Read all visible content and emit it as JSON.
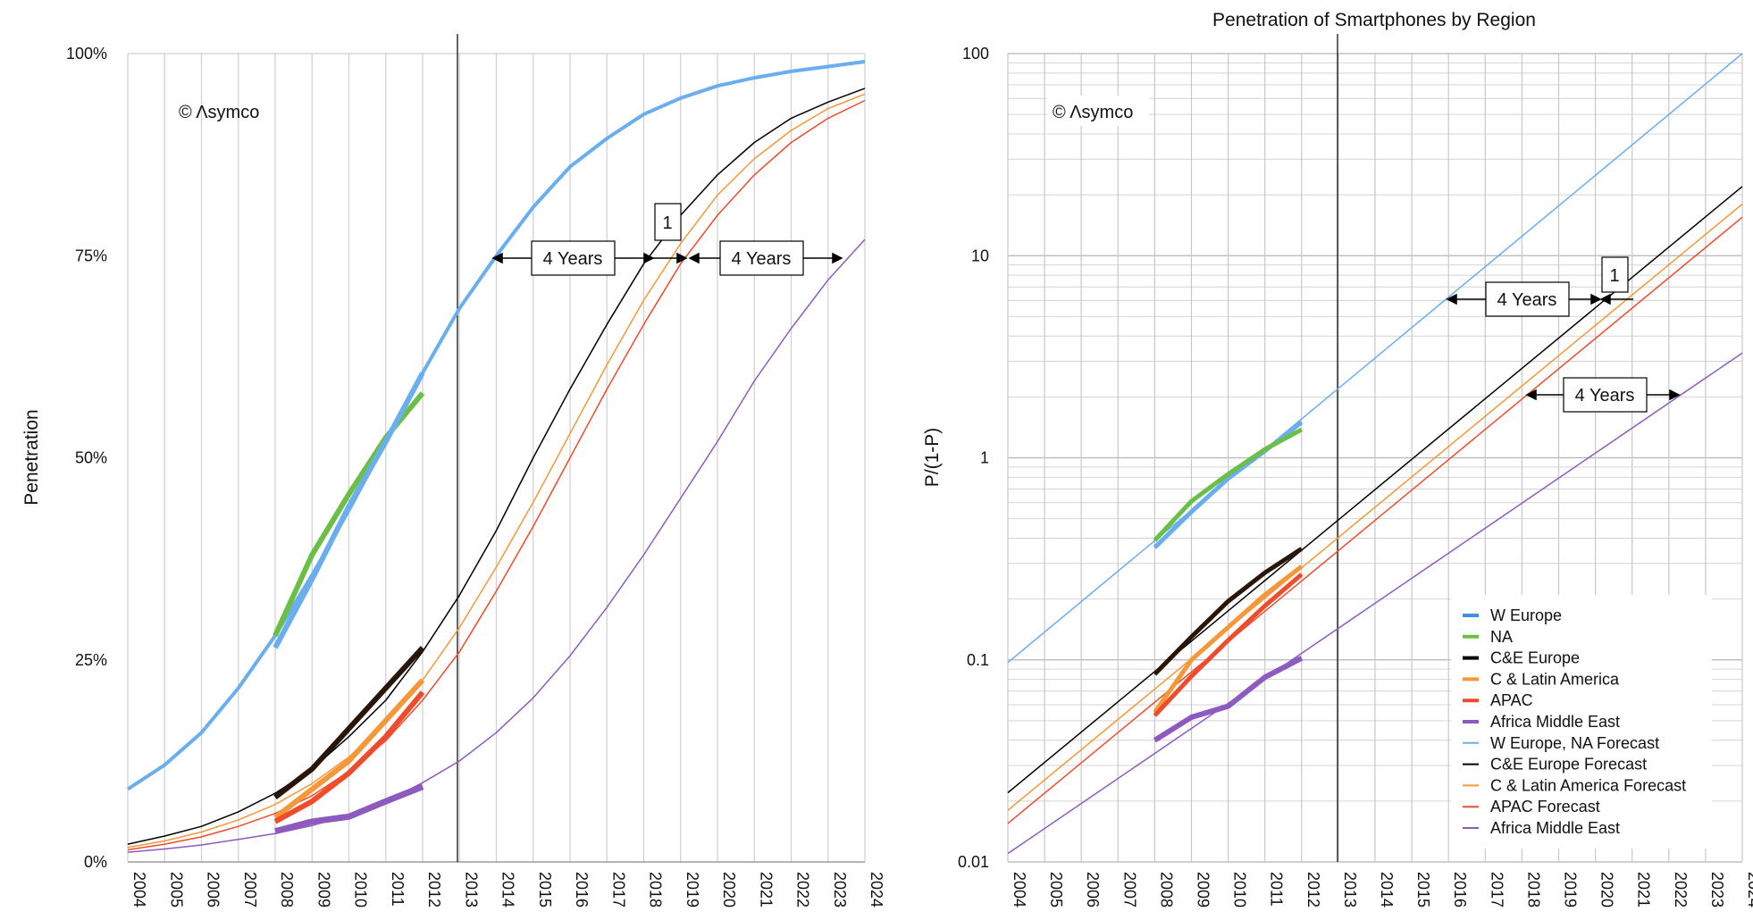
{
  "chart_data": [
    {
      "type": "line",
      "title": "",
      "watermark": "© Λsymco",
      "ylabel": "Penetration",
      "xlabel": "",
      "x_ticks": [
        "2004",
        "2005",
        "2006",
        "2007",
        "2008",
        "2009",
        "2010",
        "2011",
        "2012",
        "2013",
        "2014",
        "2015",
        "2016",
        "2017",
        "2018",
        "2019",
        "2020",
        "2021",
        "2022",
        "2023",
        "2024"
      ],
      "y_ticks": [
        "0%",
        "25%",
        "50%",
        "75%",
        "100%"
      ],
      "xlim": [
        2004,
        2024
      ],
      "ylim": [
        0,
        1
      ],
      "grid": "vertical",
      "divider_year": 2013,
      "annotations": [
        "4 Years",
        "1",
        "4 Years"
      ],
      "series": [
        {
          "key": "weu_fc",
          "color": "#6aaef0",
          "width": 4,
          "x": [
            2004,
            2005,
            2006,
            2007,
            2008,
            2009,
            2010,
            2011,
            2012,
            2013,
            2014,
            2015,
            2016,
            2017,
            2018,
            2019,
            2020,
            2021,
            2022,
            2023,
            2024
          ],
          "y": [
            0.09,
            0.12,
            0.16,
            0.215,
            0.28,
            0.355,
            0.435,
            0.52,
            0.605,
            0.685,
            0.75,
            0.81,
            0.86,
            0.895,
            0.925,
            0.945,
            0.96,
            0.97,
            0.978,
            0.984,
            0.99
          ]
        },
        {
          "key": "ceeu_fc",
          "color": "#000000",
          "width": 1.5,
          "x": [
            2004,
            2005,
            2006,
            2007,
            2008,
            2009,
            2010,
            2011,
            2012,
            2013,
            2014,
            2015,
            2016,
            2017,
            2018,
            2019,
            2020,
            2021,
            2022,
            2023,
            2024
          ],
          "y": [
            0.022,
            0.032,
            0.044,
            0.062,
            0.085,
            0.115,
            0.155,
            0.2,
            0.26,
            0.33,
            0.41,
            0.5,
            0.585,
            0.665,
            0.74,
            0.8,
            0.85,
            0.89,
            0.92,
            0.94,
            0.957
          ]
        },
        {
          "key": "cla_fc",
          "color": "#f4983a",
          "width": 1.5,
          "x": [
            2004,
            2005,
            2006,
            2007,
            2008,
            2009,
            2010,
            2011,
            2012,
            2013,
            2014,
            2015,
            2016,
            2017,
            2018,
            2019,
            2020,
            2021,
            2022,
            2023,
            2024
          ],
          "y": [
            0.018,
            0.026,
            0.037,
            0.052,
            0.071,
            0.097,
            0.13,
            0.172,
            0.225,
            0.29,
            0.365,
            0.445,
            0.53,
            0.615,
            0.695,
            0.765,
            0.825,
            0.87,
            0.905,
            0.932,
            0.95
          ]
        },
        {
          "key": "apac_fc",
          "color": "#ee4c2c",
          "width": 1.5,
          "x": [
            2004,
            2005,
            2006,
            2007,
            2008,
            2009,
            2010,
            2011,
            2012,
            2013,
            2014,
            2015,
            2016,
            2017,
            2018,
            2019,
            2020,
            2021,
            2022,
            2023,
            2024
          ],
          "y": [
            0.015,
            0.022,
            0.031,
            0.044,
            0.06,
            0.082,
            0.112,
            0.15,
            0.2,
            0.26,
            0.335,
            0.415,
            0.5,
            0.585,
            0.665,
            0.74,
            0.8,
            0.85,
            0.89,
            0.92,
            0.942
          ]
        },
        {
          "key": "ame_fc",
          "color": "#8d5bbf",
          "width": 1.5,
          "x": [
            2004,
            2005,
            2006,
            2007,
            2008,
            2009,
            2010,
            2011,
            2012,
            2013,
            2014,
            2015,
            2016,
            2017,
            2018,
            2019,
            2020,
            2021,
            2022,
            2023,
            2024
          ],
          "y": [
            0.012,
            0.016,
            0.021,
            0.028,
            0.035,
            0.045,
            0.058,
            0.075,
            0.098,
            0.125,
            0.16,
            0.203,
            0.255,
            0.315,
            0.38,
            0.45,
            0.52,
            0.595,
            0.66,
            0.72,
            0.77
          ]
        },
        {
          "key": "na",
          "color": "#6bbf45",
          "width": 6,
          "x": [
            2008,
            2009,
            2010,
            2011,
            2012
          ],
          "y": [
            0.28,
            0.38,
            0.455,
            0.525,
            0.58
          ]
        },
        {
          "key": "weu",
          "color": "#6aaef0",
          "width": 6,
          "x": [
            2008,
            2009,
            2010,
            2011,
            2012
          ],
          "y": [
            0.265,
            0.35,
            0.44,
            0.52,
            0.605
          ]
        },
        {
          "key": "ceeu",
          "color": "#2a1608",
          "width": 6,
          "x": [
            2008,
            2009,
            2010,
            2011,
            2012
          ],
          "y": [
            0.08,
            0.115,
            0.165,
            0.215,
            0.265
          ]
        },
        {
          "key": "cla",
          "color": "#f4983a",
          "width": 6,
          "x": [
            2008,
            2009,
            2010,
            2011,
            2012
          ],
          "y": [
            0.055,
            0.09,
            0.125,
            0.175,
            0.225
          ]
        },
        {
          "key": "apac",
          "color": "#ee4c2c",
          "width": 6,
          "x": [
            2008,
            2009,
            2010,
            2011,
            2012
          ],
          "y": [
            0.05,
            0.075,
            0.11,
            0.155,
            0.21
          ]
        },
        {
          "key": "ame",
          "color": "#8d5bbf",
          "width": 7,
          "x": [
            2008,
            2009,
            2010,
            2011,
            2012
          ],
          "y": [
            0.038,
            0.05,
            0.056,
            0.075,
            0.093
          ]
        }
      ]
    },
    {
      "type": "line",
      "title": "Penetration of Smartphones by Region",
      "watermark": "© Λsymco",
      "ylabel": "P/(1-P)",
      "xlabel": "",
      "scale_y": "log",
      "x_ticks": [
        "2004",
        "2005",
        "2006",
        "2007",
        "2008",
        "2009",
        "2010",
        "2011",
        "2012",
        "2013",
        "2014",
        "2015",
        "2016",
        "2017",
        "2018",
        "2019",
        "2020",
        "2021",
        "2022",
        "2023",
        "2024"
      ],
      "y_ticks": [
        "0.01",
        "0.1",
        "1",
        "10",
        "100"
      ],
      "xlim": [
        2004,
        2024
      ],
      "ylim": [
        0.01,
        100
      ],
      "grid": "both",
      "divider_year": 2013,
      "annotations": [
        "4 Years",
        "1",
        "4 Years"
      ],
      "legend_position": "bottom-right",
      "series": [
        {
          "key": "weu_fc",
          "name": "W Europe, NA Forecast",
          "color": "#6aaef0",
          "width": 1.5,
          "x": [
            2004,
            2024
          ],
          "y": [
            0.097,
            100
          ]
        },
        {
          "key": "ceeu_fc",
          "name": "C&E Europe Forecast",
          "color": "#000000",
          "width": 1.5,
          "x": [
            2004,
            2024
          ],
          "y": [
            0.022,
            22
          ]
        },
        {
          "key": "cla_fc",
          "name": "C & Latin America Forecast",
          "color": "#f4983a",
          "width": 1.5,
          "x": [
            2004,
            2024
          ],
          "y": [
            0.018,
            18
          ]
        },
        {
          "key": "apac_fc",
          "name": "APAC Forecast",
          "color": "#ee4c2c",
          "width": 1.5,
          "x": [
            2004,
            2024
          ],
          "y": [
            0.0155,
            15.5
          ]
        },
        {
          "key": "ame_fc",
          "name": "Africa Middle East",
          "color": "#8d5bbf",
          "width": 1.5,
          "x": [
            2004,
            2024
          ],
          "y": [
            0.011,
            3.3
          ]
        },
        {
          "key": "weu",
          "name": "W Europe",
          "color": "#6aaef0",
          "width": 5,
          "x": [
            2008,
            2009,
            2010,
            2011,
            2012
          ],
          "y": [
            0.36,
            0.54,
            0.79,
            1.08,
            1.5
          ]
        },
        {
          "key": "na",
          "name": "NA",
          "color": "#6bbf45",
          "width": 5,
          "x": [
            2008,
            2009,
            2010,
            2011,
            2012
          ],
          "y": [
            0.39,
            0.61,
            0.83,
            1.1,
            1.38
          ]
        },
        {
          "key": "ceeu",
          "name": "C&E Europe",
          "color": "#2a1608",
          "width": 5,
          "x": [
            2008,
            2009,
            2010,
            2011,
            2012
          ],
          "y": [
            0.085,
            0.13,
            0.195,
            0.27,
            0.355
          ]
        },
        {
          "key": "cla",
          "name": "C & Latin America",
          "color": "#f4983a",
          "width": 5,
          "x": [
            2008,
            2009,
            2010,
            2011,
            2012
          ],
          "y": [
            0.055,
            0.1,
            0.145,
            0.21,
            0.29
          ]
        },
        {
          "key": "apac",
          "name": "APAC",
          "color": "#ee4c2c",
          "width": 5,
          "x": [
            2008,
            2009,
            2010,
            2011,
            2012
          ],
          "y": [
            0.053,
            0.083,
            0.125,
            0.185,
            0.265
          ]
        },
        {
          "key": "ame",
          "name": "Africa Middle East",
          "color": "#8d5bbf",
          "width": 6,
          "x": [
            2008,
            2009,
            2010,
            2011,
            2012
          ],
          "y": [
            0.04,
            0.052,
            0.059,
            0.082,
            0.102
          ]
        }
      ],
      "legend": [
        {
          "key": "weu",
          "label": "W Europe",
          "color": "#3d8fe6",
          "width": 4
        },
        {
          "key": "na",
          "label": "NA",
          "color": "#6bbf45",
          "width": 4
        },
        {
          "key": "ceeu",
          "label": "C&E Europe",
          "color": "#000000",
          "width": 4
        },
        {
          "key": "cla",
          "label": "C & Latin America",
          "color": "#f4983a",
          "width": 4
        },
        {
          "key": "apac",
          "label": "APAC",
          "color": "#ee4c2c",
          "width": 4
        },
        {
          "key": "ame",
          "label": "Africa Middle East",
          "color": "#8d5bbf",
          "width": 4
        },
        {
          "key": "weu_fc",
          "label": "W Europe, NA Forecast",
          "color": "#6aaef0",
          "width": 2
        },
        {
          "key": "ceeu_fc",
          "label": "C&E Europe Forecast",
          "color": "#000000",
          "width": 2
        },
        {
          "key": "cla_fc",
          "label": "C & Latin America Forecast",
          "color": "#f4983a",
          "width": 2
        },
        {
          "key": "apac_fc",
          "label": "APAC Forecast",
          "color": "#ee4c2c",
          "width": 2
        },
        {
          "key": "ame_fc",
          "label": "Africa Middle East",
          "color": "#8d5bbf",
          "width": 2
        }
      ]
    }
  ]
}
